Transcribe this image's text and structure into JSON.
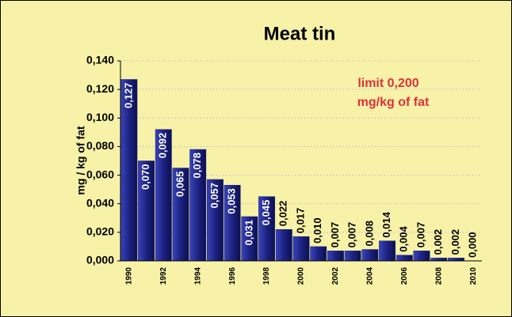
{
  "chart_data": {
    "type": "bar",
    "title": "Meat tin",
    "y_label": "mg / kg of fat",
    "annotations": [
      "limit 0,200",
      "mg/kg of fat"
    ],
    "categories": [
      "1990",
      null,
      "1992",
      null,
      "1994",
      null,
      "1996",
      null,
      "1998",
      null,
      "2000",
      null,
      "2002",
      null,
      "2004",
      null,
      "2006",
      null,
      "2008",
      null,
      "2010"
    ],
    "values": [
      0.127,
      0.07,
      0.092,
      0.065,
      0.078,
      0.057,
      0.053,
      0.031,
      0.045,
      0.022,
      0.017,
      0.01,
      0.007,
      0.007,
      0.008,
      0.014,
      0.004,
      0.007,
      0.002,
      0.002,
      0.0
    ],
    "value_labels": [
      "0,127",
      "0,070",
      "0,092",
      "0,065",
      "0,078",
      "0,057",
      "0,053",
      "0,031",
      "0,045",
      "0,022",
      "0,017",
      "0,010",
      "0,007",
      "0,007",
      "0,008",
      "0,014",
      "0,004",
      "0,007",
      "0,002",
      "0,002",
      "0,000"
    ],
    "color": "#1c2282",
    "ylim": [
      0,
      0.14
    ],
    "yticks": [
      {
        "value": 0,
        "label": "0,000"
      },
      {
        "value": 0.02,
        "label": "0,020"
      },
      {
        "value": 0.04,
        "label": "0,040"
      },
      {
        "value": 0.06,
        "label": "0,060"
      },
      {
        "value": 0.08,
        "label": "0,080"
      },
      {
        "value": 0.1,
        "label": "0,100"
      },
      {
        "value": 0.12,
        "label": "0,120"
      },
      {
        "value": 0.14,
        "label": "0,140"
      }
    ],
    "grid": true
  }
}
